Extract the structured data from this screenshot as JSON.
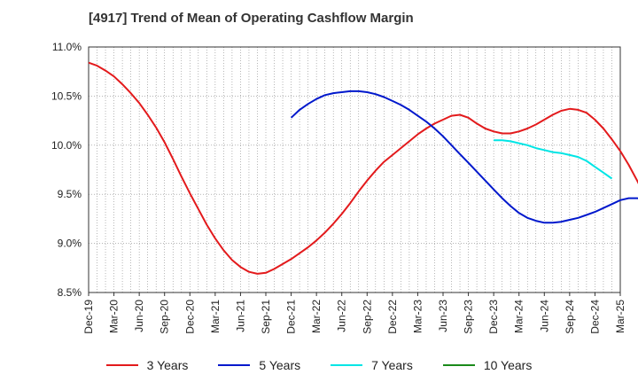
{
  "chart_data": {
    "type": "line",
    "title": "[4917]  Trend of Mean of Operating Cashflow Margin",
    "xlabel": "",
    "ylabel": "",
    "x_ticks": [
      "Dec-19",
      "Mar-20",
      "Jun-20",
      "Sep-20",
      "Dec-20",
      "Mar-21",
      "Jun-21",
      "Sep-21",
      "Dec-21",
      "Mar-22",
      "Jun-22",
      "Sep-22",
      "Dec-22",
      "Mar-23",
      "Jun-23",
      "Sep-23",
      "Dec-23",
      "Mar-24",
      "Jun-24",
      "Sep-24",
      "Dec-24",
      "Mar-25"
    ],
    "y_ticks": [
      "8.5%",
      "9.0%",
      "9.5%",
      "10.0%",
      "10.5%",
      "11.0%"
    ],
    "ylim": [
      8.5,
      11.0
    ],
    "grid": true,
    "legend_position": "bottom",
    "series": [
      {
        "name": "3 Years",
        "color": "#e31a1c",
        "start": "Dec-19",
        "values": [
          10.84,
          10.81,
          10.76,
          10.7,
          10.62,
          10.53,
          10.43,
          10.31,
          10.18,
          10.03,
          9.86,
          9.68,
          9.51,
          9.35,
          9.19,
          9.05,
          8.93,
          8.83,
          8.76,
          8.71,
          8.69,
          8.7,
          8.74,
          8.79,
          8.84,
          8.9,
          8.96,
          9.03,
          9.11,
          9.2,
          9.3,
          9.41,
          9.53,
          9.64,
          9.74,
          9.83,
          9.9,
          9.97,
          10.04,
          10.11,
          10.17,
          10.22,
          10.26,
          10.3,
          10.31,
          10.28,
          10.22,
          10.17,
          10.14,
          10.12,
          10.12,
          10.14,
          10.17,
          10.21,
          10.26,
          10.31,
          10.35,
          10.37,
          10.36,
          10.33,
          10.26,
          10.17,
          10.06,
          9.94,
          9.8,
          9.64,
          9.47,
          9.3
        ]
      },
      {
        "name": "5 Years",
        "color": "#0018cc",
        "start": "Dec-21",
        "values": [
          10.28,
          10.36,
          10.42,
          10.47,
          10.51,
          10.53,
          10.54,
          10.55,
          10.55,
          10.54,
          10.52,
          10.49,
          10.45,
          10.41,
          10.36,
          10.3,
          10.24,
          10.17,
          10.09,
          10.0,
          9.91,
          9.82,
          9.73,
          9.64,
          9.55,
          9.46,
          9.38,
          9.31,
          9.26,
          9.23,
          9.21,
          9.21,
          9.22,
          9.24,
          9.26,
          9.29,
          9.32,
          9.36,
          9.4,
          9.44,
          9.46,
          9.46,
          9.45
        ]
      },
      {
        "name": "7 Years",
        "color": "#00e5e5",
        "start": "Dec-23",
        "values": [
          10.05,
          10.05,
          10.04,
          10.02,
          10.0,
          9.97,
          9.95,
          9.93,
          9.92,
          9.9,
          9.88,
          9.84,
          9.78,
          9.72,
          9.66
        ]
      },
      {
        "name": "10 Years",
        "color": "#1a8a1a",
        "start": "Dec-24",
        "values": []
      }
    ]
  }
}
